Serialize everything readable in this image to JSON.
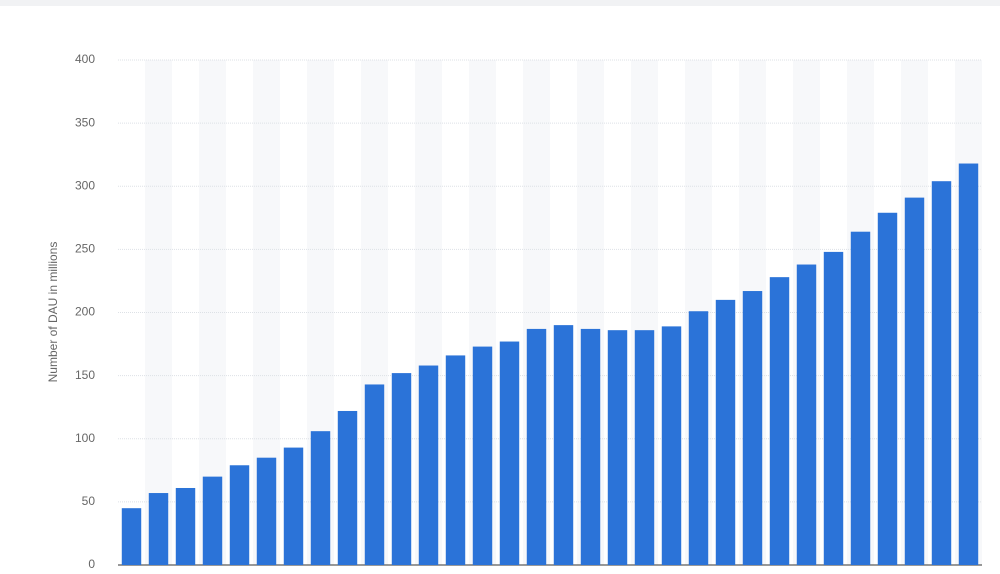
{
  "chart_data": {
    "type": "bar",
    "y_axis_label": "Number of DAU in millions",
    "categories": [
      null,
      null,
      null,
      null,
      null,
      null,
      null,
      null,
      null,
      null,
      null,
      null,
      null,
      null,
      null,
      null,
      null,
      null,
      null,
      null,
      null,
      null,
      null,
      null,
      null,
      null,
      null,
      null,
      null,
      null,
      null,
      null
    ],
    "values": [
      45,
      57,
      61,
      70,
      79,
      85,
      93,
      106,
      122,
      143,
      152,
      158,
      166,
      173,
      177,
      187,
      190,
      187,
      186,
      186,
      189,
      201,
      210,
      217,
      228,
      238,
      248,
      264,
      279,
      291,
      304,
      318
    ],
    "color": "#2b73d8",
    "ylim": [
      0,
      400
    ],
    "yticks": [
      0,
      50,
      100,
      150,
      200,
      250,
      300,
      350,
      400
    ],
    "grid": true
  }
}
